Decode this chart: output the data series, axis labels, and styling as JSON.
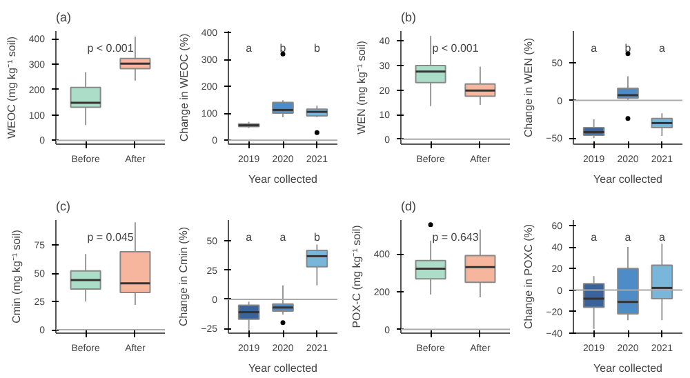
{
  "chart_data": [
    {
      "type": "box",
      "title": "(a)",
      "ylabel": "WEOC (mg kg⁻¹ soil)",
      "categories": [
        "Before",
        "After"
      ],
      "colors": [
        "#a3d9c2",
        "#f5ad92"
      ],
      "ylim": [
        -15,
        430
      ],
      "yticks": [
        0,
        100,
        200,
        300,
        400
      ],
      "ref_lines": [
        {
          "axis": "y",
          "value": 0
        }
      ],
      "annotations": [
        "p < 0.001"
      ],
      "boxes": [
        {
          "low": 60,
          "q1": 130,
          "median": 148,
          "q3": 208,
          "high": 268
        },
        {
          "low": 235,
          "q1": 282,
          "median": 302,
          "q3": 322,
          "high": 408
        }
      ]
    },
    {
      "type": "box",
      "xlabel": "Year collected",
      "ylabel": "Change in WEOC (%)",
      "categories": [
        "2019",
        "2020",
        "2021"
      ],
      "colors": [
        "#24528f",
        "#3a7fc1",
        "#6baed6"
      ],
      "ylim": [
        -15,
        405
      ],
      "yticks": [
        0,
        100,
        200,
        300,
        400
      ],
      "ref_lines": [
        {
          "axis": "y",
          "value": 0
        }
      ],
      "annotations": [
        "a",
        "b",
        "b"
      ],
      "boxes": [
        {
          "low": 45,
          "q1": 50,
          "median": 55,
          "q3": 60,
          "high": 68
        },
        {
          "low": 85,
          "q1": 100,
          "median": 112,
          "q3": 140,
          "high": 148,
          "outliers": [
            320
          ]
        },
        {
          "low": 85,
          "q1": 90,
          "median": 105,
          "q3": 115,
          "high": 128,
          "outliers": [
            28
          ]
        }
      ]
    },
    {
      "type": "box",
      "title": "(b)",
      "ylabel": "WEN (mg kg⁻¹ soil)",
      "categories": [
        "Before",
        "After"
      ],
      "colors": [
        "#a3d9c2",
        "#f5ad92"
      ],
      "ylim": [
        -2,
        44
      ],
      "yticks": [
        0,
        10,
        20,
        30,
        40
      ],
      "ref_lines": [
        {
          "axis": "y",
          "value": 0
        }
      ],
      "annotations": [
        "p < 0.001"
      ],
      "boxes": [
        {
          "low": 13.5,
          "q1": 23,
          "median": 27.5,
          "q3": 30,
          "high": 42
        },
        {
          "low": 14,
          "q1": 17.5,
          "median": 19.8,
          "q3": 22.5,
          "high": 29.5
        }
      ]
    },
    {
      "type": "box",
      "xlabel": "Year collected",
      "ylabel": "Change in WEN (%)",
      "categories": [
        "2019",
        "2020",
        "2021"
      ],
      "colors": [
        "#24528f",
        "#3a7fc1",
        "#6baed6"
      ],
      "ylim": [
        -58,
        92
      ],
      "yticks": [
        -50,
        0,
        50
      ],
      "ref_lines": [
        {
          "axis": "y",
          "value": 0
        }
      ],
      "annotations": [
        "a",
        "b",
        "a"
      ],
      "boxes": [
        {
          "low": -50,
          "q1": -46,
          "median": -42,
          "q3": -36,
          "high": -25
        },
        {
          "low": 0,
          "q1": 3,
          "median": 7,
          "q3": 16,
          "high": 32,
          "outliers": [
            62,
            -24
          ]
        },
        {
          "low": -47,
          "q1": -36,
          "median": -30,
          "q3": -24,
          "high": -17
        }
      ]
    },
    {
      "type": "box",
      "title": "(c)",
      "ylabel": "Cmin (mg kg⁻¹ soil)",
      "categories": [
        "Before",
        "After"
      ],
      "colors": [
        "#a3d9c2",
        "#f5ad92"
      ],
      "ylim": [
        -3,
        97
      ],
      "yticks": [
        0,
        25,
        50,
        75
      ],
      "ref_lines": [
        {
          "axis": "y",
          "value": 0
        }
      ],
      "annotations": [
        "p = 0.045"
      ],
      "boxes": [
        {
          "low": 25,
          "q1": 36,
          "median": 44,
          "q3": 52,
          "high": 67
        },
        {
          "low": 22,
          "q1": 33,
          "median": 41,
          "q3": 69,
          "high": 95
        }
      ]
    },
    {
      "type": "box",
      "xlabel": "Year collected",
      "ylabel": "Change in Cmin (%)",
      "categories": [
        "2019",
        "2020",
        "2021"
      ],
      "colors": [
        "#24528f",
        "#3a7fc1",
        "#6baed6"
      ],
      "ylim": [
        -29,
        68
      ],
      "yticks": [
        -25,
        0,
        25,
        50
      ],
      "ref_lines": [
        {
          "axis": "y",
          "value": 0
        }
      ],
      "annotations": [
        "a",
        "a",
        "b"
      ],
      "boxes": [
        {
          "low": -26,
          "q1": -17,
          "median": -11,
          "q3": -5,
          "high": -2
        },
        {
          "low": -13,
          "q1": -10,
          "median": -7,
          "q3": -4,
          "high": 12,
          "outliers": [
            -20
          ]
        },
        {
          "low": 12,
          "q1": 28,
          "median": 37,
          "q3": 42,
          "high": 47
        }
      ]
    },
    {
      "type": "box",
      "title": "(d)",
      "ylabel": "POX-C (mg kg⁻¹ soil)",
      "categories": [
        "Before",
        "After"
      ],
      "colors": [
        "#a3d9c2",
        "#f5ad92"
      ],
      "ylim": [
        -20,
        580
      ],
      "yticks": [
        0,
        200,
        400
      ],
      "ref_lines": [
        {
          "axis": "y",
          "value": 0
        }
      ],
      "annotations": [
        "p = 0.643"
      ],
      "boxes": [
        {
          "low": 185,
          "q1": 268,
          "median": 322,
          "q3": 365,
          "high": 470,
          "outliers": [
            555
          ]
        },
        {
          "low": 170,
          "q1": 250,
          "median": 330,
          "q3": 392,
          "high": 530
        }
      ]
    },
    {
      "type": "box",
      "xlabel": "Year collected",
      "ylabel": "Change in POXC (%)",
      "categories": [
        "2019",
        "2020",
        "2021"
      ],
      "colors": [
        "#24528f",
        "#3a7fc1",
        "#6baed6"
      ],
      "ylim": [
        -40,
        65
      ],
      "yticks": [
        -40,
        -20,
        0,
        20,
        40,
        60
      ],
      "ref_lines": [
        {
          "axis": "y",
          "value": 0
        }
      ],
      "annotations": [
        "a",
        "a",
        "a"
      ],
      "boxes": [
        {
          "low": -36,
          "q1": -16,
          "median": -8,
          "q3": 6,
          "high": 13
        },
        {
          "low": -28,
          "q1": -22,
          "median": -11,
          "q3": 20,
          "high": 40
        },
        {
          "low": -28,
          "q1": -8,
          "median": 2,
          "q3": 23,
          "high": 43
        }
      ]
    }
  ]
}
